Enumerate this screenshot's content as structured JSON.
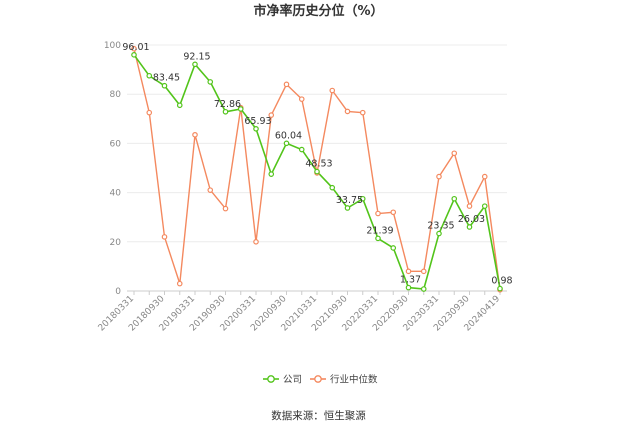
{
  "chart_data": {
    "type": "line",
    "title": "市净率历史分位（%）",
    "source": "数据来源：恒生聚源",
    "ylim": [
      0,
      100
    ],
    "y_ticks": [
      0,
      20,
      40,
      60,
      80,
      100
    ],
    "grid": "horizontal",
    "legend_position": "bottom",
    "x_tick_labels": [
      "20180331",
      "20180930",
      "20190331",
      "20190930",
      "20200331",
      "20200930",
      "20210331",
      "20210930",
      "20220331",
      "20220930",
      "20230331",
      "20230930",
      "20240419"
    ],
    "x": [
      "20180331",
      "20180630",
      "20180930",
      "20181231",
      "20190331",
      "20190630",
      "20190930",
      "20191231",
      "20200331",
      "20200630",
      "20200930",
      "20201231",
      "20210331",
      "20210630",
      "20210930",
      "20211231",
      "20220331",
      "20220630",
      "20220930",
      "20221231",
      "20230331",
      "20230630",
      "20230930",
      "20231231",
      "20240419"
    ],
    "series": [
      {
        "name": "公司",
        "color": "#52c41a",
        "values": [
          96.01,
          87.5,
          83.45,
          75.5,
          92.15,
          85.0,
          72.86,
          74.0,
          65.93,
          47.5,
          60.04,
          57.5,
          48.53,
          42.0,
          33.75,
          37.5,
          21.39,
          17.5,
          1.37,
          0.8,
          23.35,
          37.5,
          26.03,
          34.5,
          0.98
        ],
        "labels": {
          "0": "96.01",
          "2": "83.45",
          "4": "92.15",
          "6": "72.86",
          "8": "65.93",
          "10": "60.04",
          "12": "48.53",
          "14": "33.75",
          "16": "21.39",
          "18": "1.37",
          "20": "23.35",
          "22": "26.03",
          "24": "0.98"
        }
      },
      {
        "name": "行业中位数",
        "color": "#f4895f",
        "values": [
          98.5,
          72.5,
          22.0,
          3.0,
          63.5,
          41.0,
          33.5,
          74.5,
          20.0,
          71.5,
          84.0,
          78.0,
          48.0,
          81.5,
          73.0,
          72.5,
          31.5,
          32.0,
          8.0,
          8.0,
          46.5,
          56.0,
          34.5,
          46.5,
          0.5
        ]
      }
    ]
  }
}
